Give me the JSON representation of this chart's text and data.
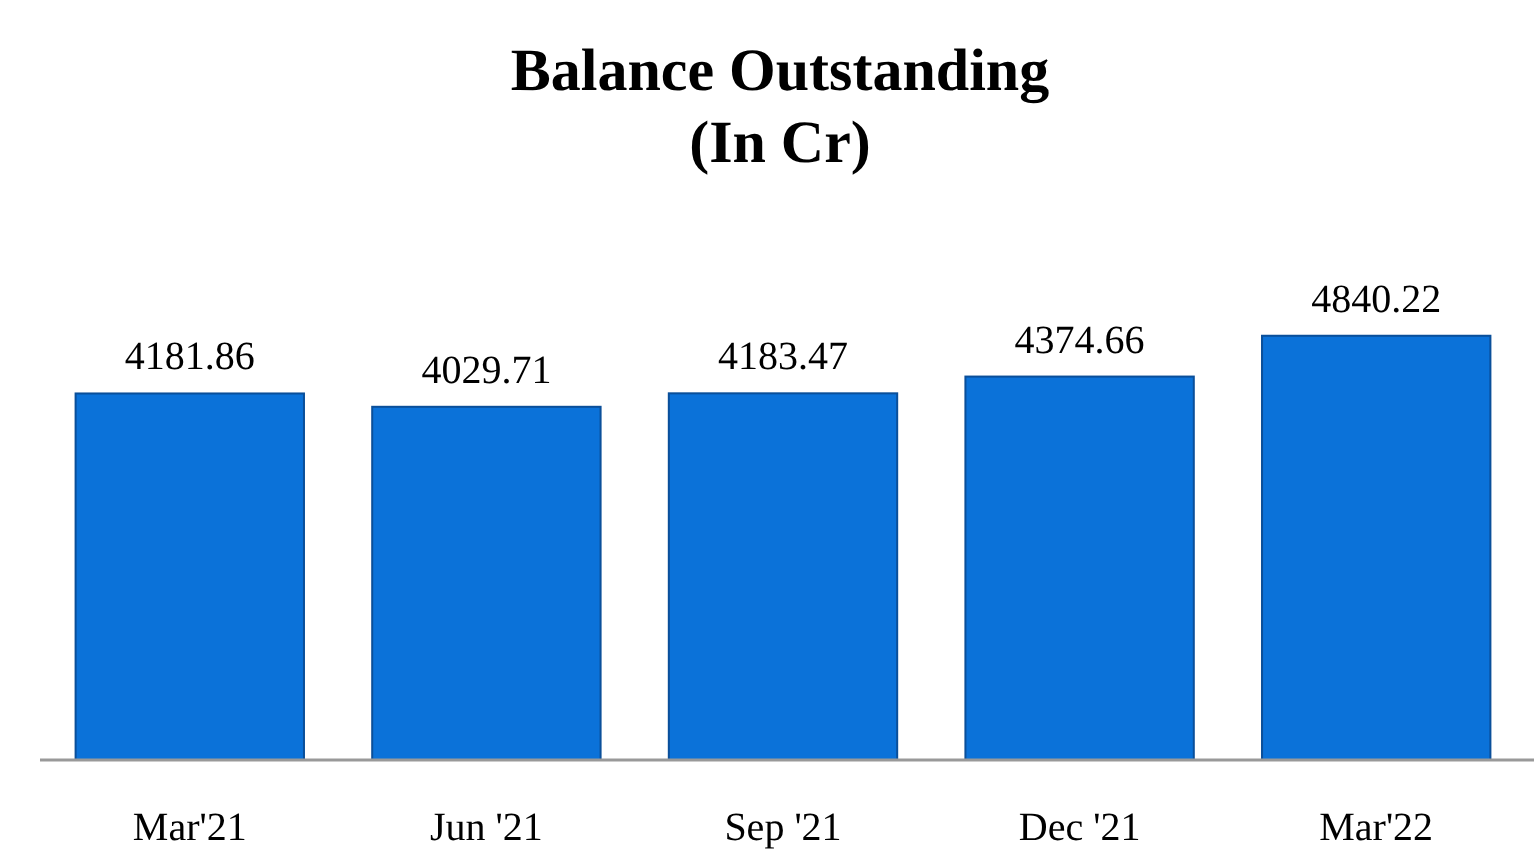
{
  "chart_data": {
    "type": "bar",
    "title": "Balance Outstanding\n(In Cr)",
    "categories": [
      "Mar'21",
      "Jun '21",
      "Sep '21",
      "Dec '21",
      "Mar'22"
    ],
    "values": [
      4181.86,
      4029.71,
      4183.47,
      4374.66,
      4840.22
    ],
    "color": "#0b72d9",
    "data_labels": true
  }
}
